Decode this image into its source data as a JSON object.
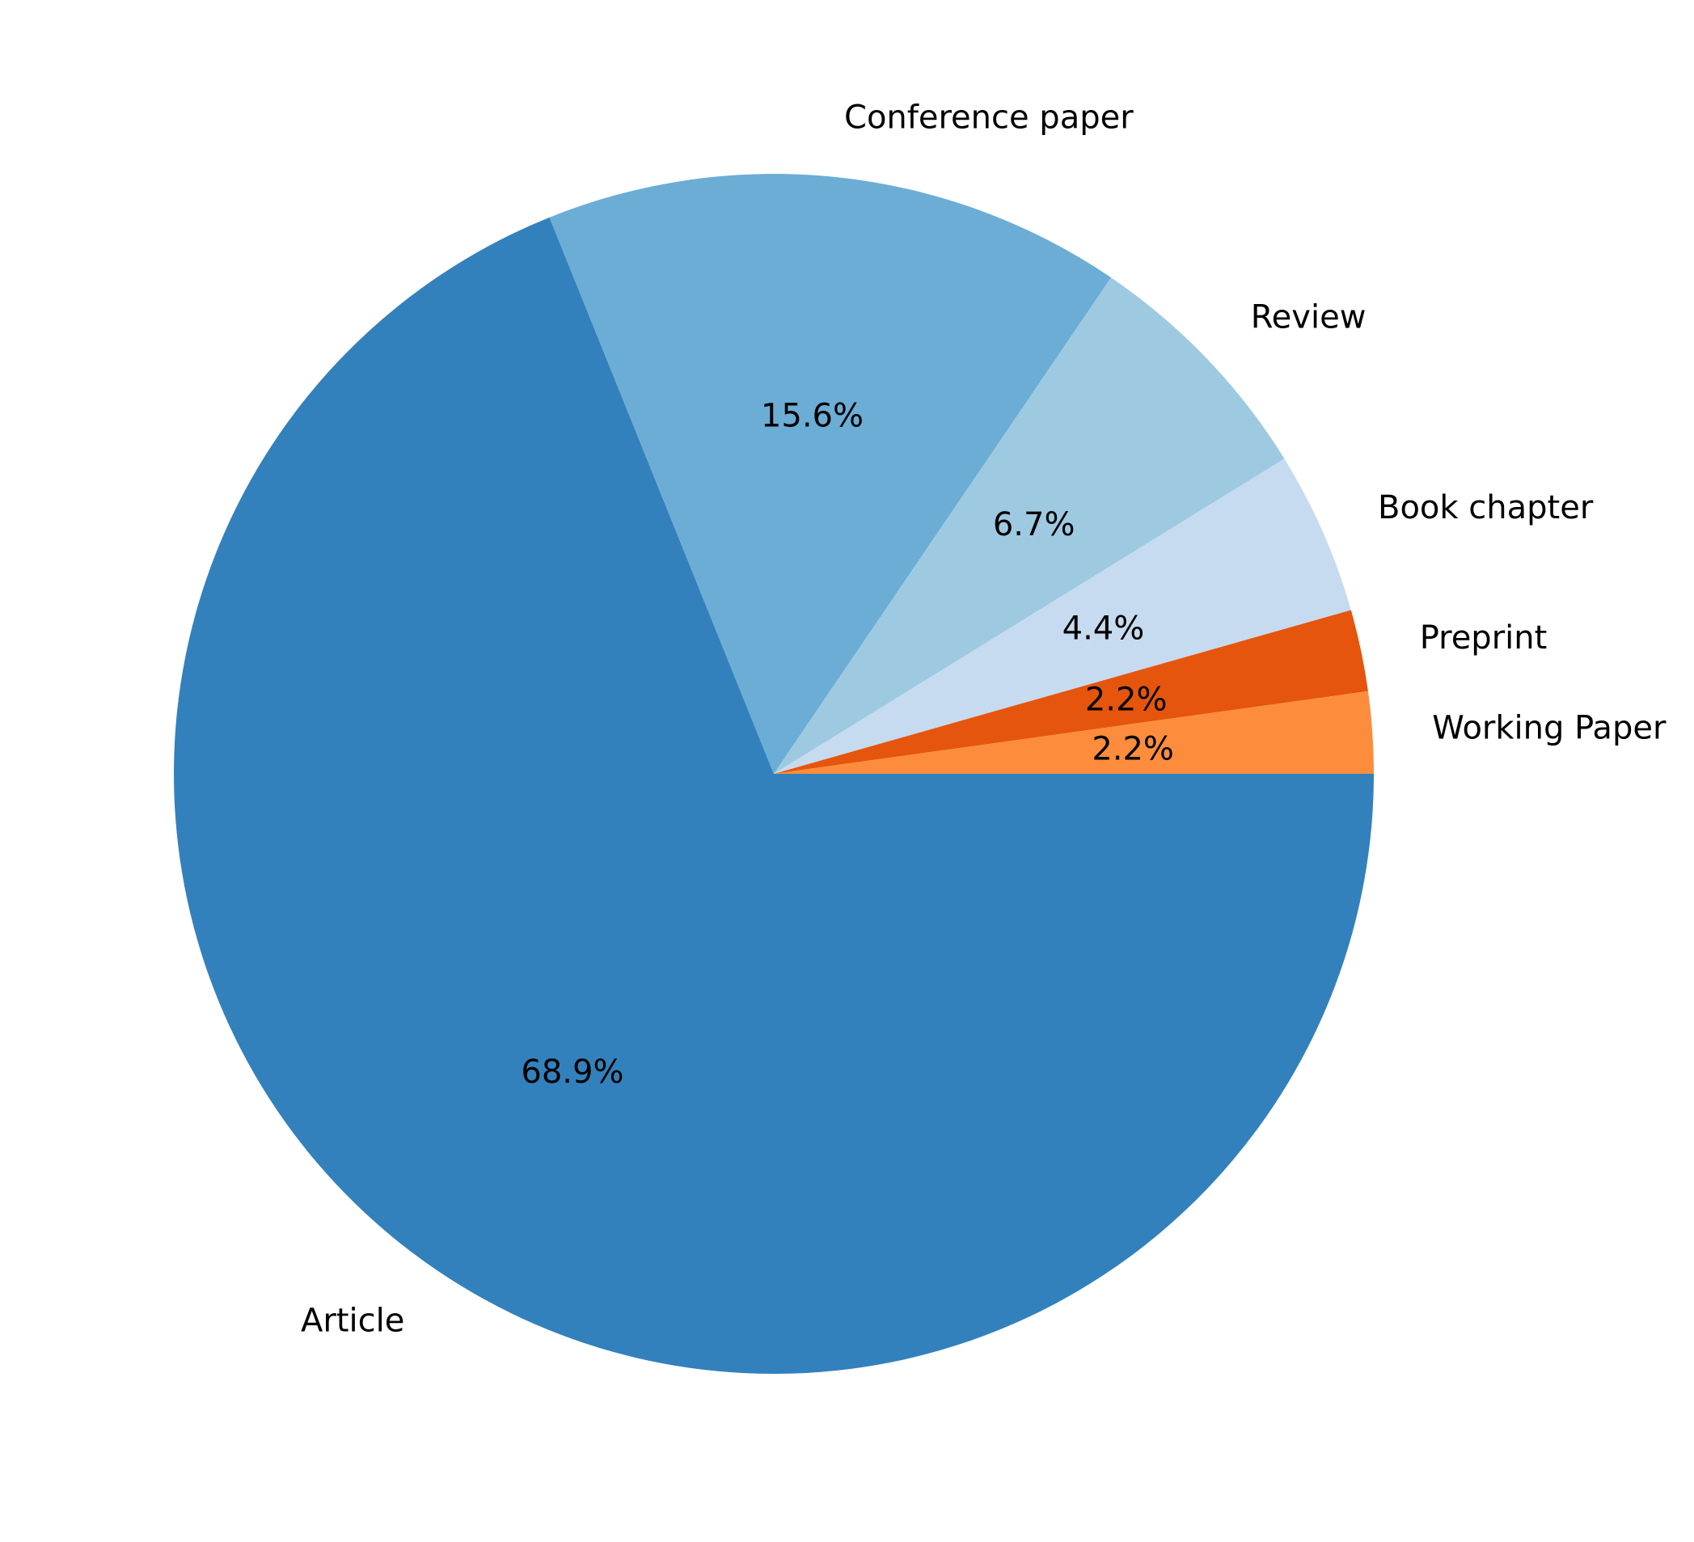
{
  "chart_data": {
    "type": "pie",
    "categories": [
      "Article",
      "Conference paper",
      "Review",
      "Book chapter",
      "Preprint",
      "Working Paper"
    ],
    "values": [
      68.9,
      15.6,
      6.7,
      4.4,
      2.2,
      2.2
    ],
    "value_labels": [
      "68.9%",
      "15.6%",
      "6.7%",
      "4.4%",
      "2.2%",
      "2.2%"
    ],
    "colors": [
      "#3381bc",
      "#6cadd6",
      "#9ecae1",
      "#c6dbef",
      "#e6550d",
      "#fd8d3c"
    ],
    "direction": "clockwise",
    "start": "3 o'clock"
  }
}
